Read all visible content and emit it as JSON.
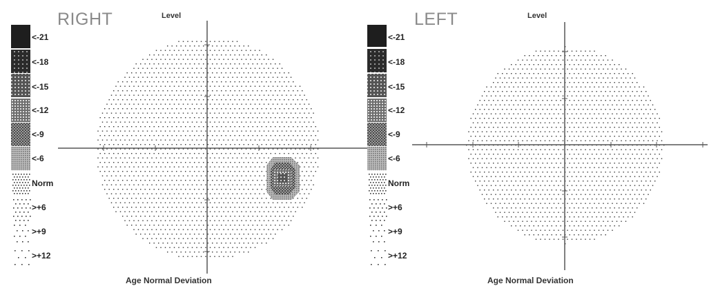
{
  "legend_labels": [
    "<-21",
    "<-18",
    "<-15",
    "<-12",
    "<-9",
    "<-6",
    "Norm",
    ">+6",
    ">+9",
    ">+12"
  ],
  "panels": [
    {
      "eye": "RIGHT",
      "top_label": "Level",
      "bottom_label": "Age Normal Deviation",
      "defect": "scotoma below-right of center (levels <-6 to <-15)"
    },
    {
      "eye": "LEFT",
      "top_label": "Level",
      "bottom_label": "Age Normal Deviation",
      "defect": "none"
    }
  ],
  "colors": {
    "axis": "#555555",
    "title": "#8a8a8a",
    "dot": "#333333"
  }
}
